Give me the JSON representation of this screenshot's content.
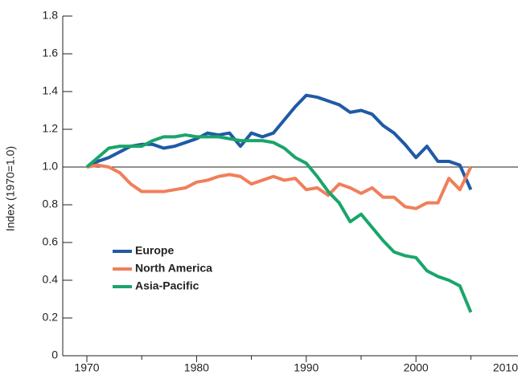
{
  "chart_data": {
    "type": "line",
    "y_label": "Index (1970=1.0)",
    "x": [
      1970,
      1971,
      1972,
      1973,
      1974,
      1975,
      1976,
      1977,
      1978,
      1979,
      1980,
      1981,
      1982,
      1983,
      1984,
      1985,
      1986,
      1987,
      1988,
      1989,
      1990,
      1991,
      1992,
      1993,
      1994,
      1995,
      1996,
      1997,
      1998,
      1999,
      2000,
      2001,
      2002,
      2003,
      2004,
      2005
    ],
    "series": [
      {
        "name": "Europe",
        "color": "#1f5aa6",
        "values": [
          1.0,
          1.03,
          1.05,
          1.08,
          1.11,
          1.12,
          1.12,
          1.1,
          1.11,
          1.13,
          1.15,
          1.18,
          1.17,
          1.18,
          1.11,
          1.18,
          1.16,
          1.18,
          1.25,
          1.32,
          1.38,
          1.37,
          1.35,
          1.33,
          1.29,
          1.3,
          1.28,
          1.22,
          1.18,
          1.12,
          1.05,
          1.11,
          1.03,
          1.03,
          1.01,
          0.88
        ]
      },
      {
        "name": "North America",
        "color": "#f07f5a",
        "values": [
          1.0,
          1.01,
          1.0,
          0.97,
          0.91,
          0.87,
          0.87,
          0.87,
          0.88,
          0.89,
          0.92,
          0.93,
          0.95,
          0.96,
          0.95,
          0.91,
          0.93,
          0.95,
          0.93,
          0.94,
          0.88,
          0.89,
          0.85,
          0.91,
          0.89,
          0.86,
          0.89,
          0.84,
          0.84,
          0.79,
          0.78,
          0.81,
          0.81,
          0.94,
          0.88,
          1.0
        ]
      },
      {
        "name": "Asia-Pacific",
        "color": "#1aa56a",
        "values": [
          1.0,
          1.05,
          1.1,
          1.11,
          1.11,
          1.11,
          1.14,
          1.16,
          1.16,
          1.17,
          1.16,
          1.16,
          1.16,
          1.15,
          1.14,
          1.14,
          1.14,
          1.13,
          1.1,
          1.05,
          1.02,
          0.95,
          0.87,
          0.81,
          0.71,
          0.75,
          0.68,
          0.61,
          0.55,
          0.53,
          0.52,
          0.45,
          0.42,
          0.4,
          0.37,
          0.23
        ]
      }
    ],
    "xlim": [
      1967.8,
      2009.3
    ],
    "xticks": [
      1970,
      1980,
      1990,
      2000,
      2010
    ],
    "xminor_ticks": [
      1975,
      1985,
      1995,
      2005
    ],
    "ylim": [
      0,
      1.8
    ],
    "yticks": [
      0,
      {
        "value": 0.2,
        "label": "0.2"
      },
      {
        "value": 0.4,
        "label": "0.4"
      },
      {
        "value": 0.6,
        "label": "0.6"
      },
      {
        "value": 0.8,
        "label": "0.8"
      },
      {
        "value": 1.0,
        "label": "1.0"
      },
      {
        "value": 1.2,
        "label": "1.2"
      },
      {
        "value": 1.4,
        "label": "1.4"
      },
      {
        "value": 1.6,
        "label": "1.6"
      },
      {
        "value": 1.8,
        "label": "1.8"
      }
    ],
    "reference_line": 1,
    "legend": "lower left"
  }
}
